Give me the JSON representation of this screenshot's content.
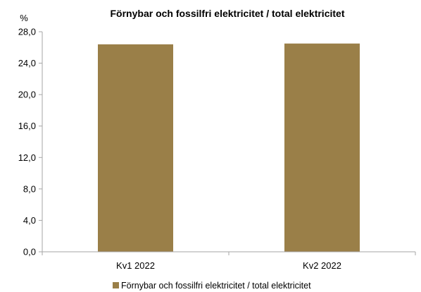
{
  "chart_data": {
    "type": "bar",
    "title": "Förnybar och fossilfri elektricitet / total elektricitet",
    "unit_label": "%",
    "xlabel": "",
    "ylabel": "",
    "categories": [
      "Kv1 2022",
      "Kv2 2022"
    ],
    "series": [
      {
        "name": "Förnybar och fossilfri elektricitet / total elektricitet",
        "values": [
          26.4,
          26.5
        ]
      }
    ],
    "ylim": [
      0,
      28
    ],
    "yticks": [
      0,
      4,
      8,
      12,
      16,
      20,
      24,
      28
    ],
    "ytick_labels": [
      "0,0",
      "4,0",
      "8,0",
      "12,0",
      "16,0",
      "20,0",
      "24,0",
      "28,0"
    ],
    "grid": false,
    "legend": "bottom",
    "colors": {
      "bar": "#9a7f48",
      "axis": "#a6a6a6"
    }
  }
}
